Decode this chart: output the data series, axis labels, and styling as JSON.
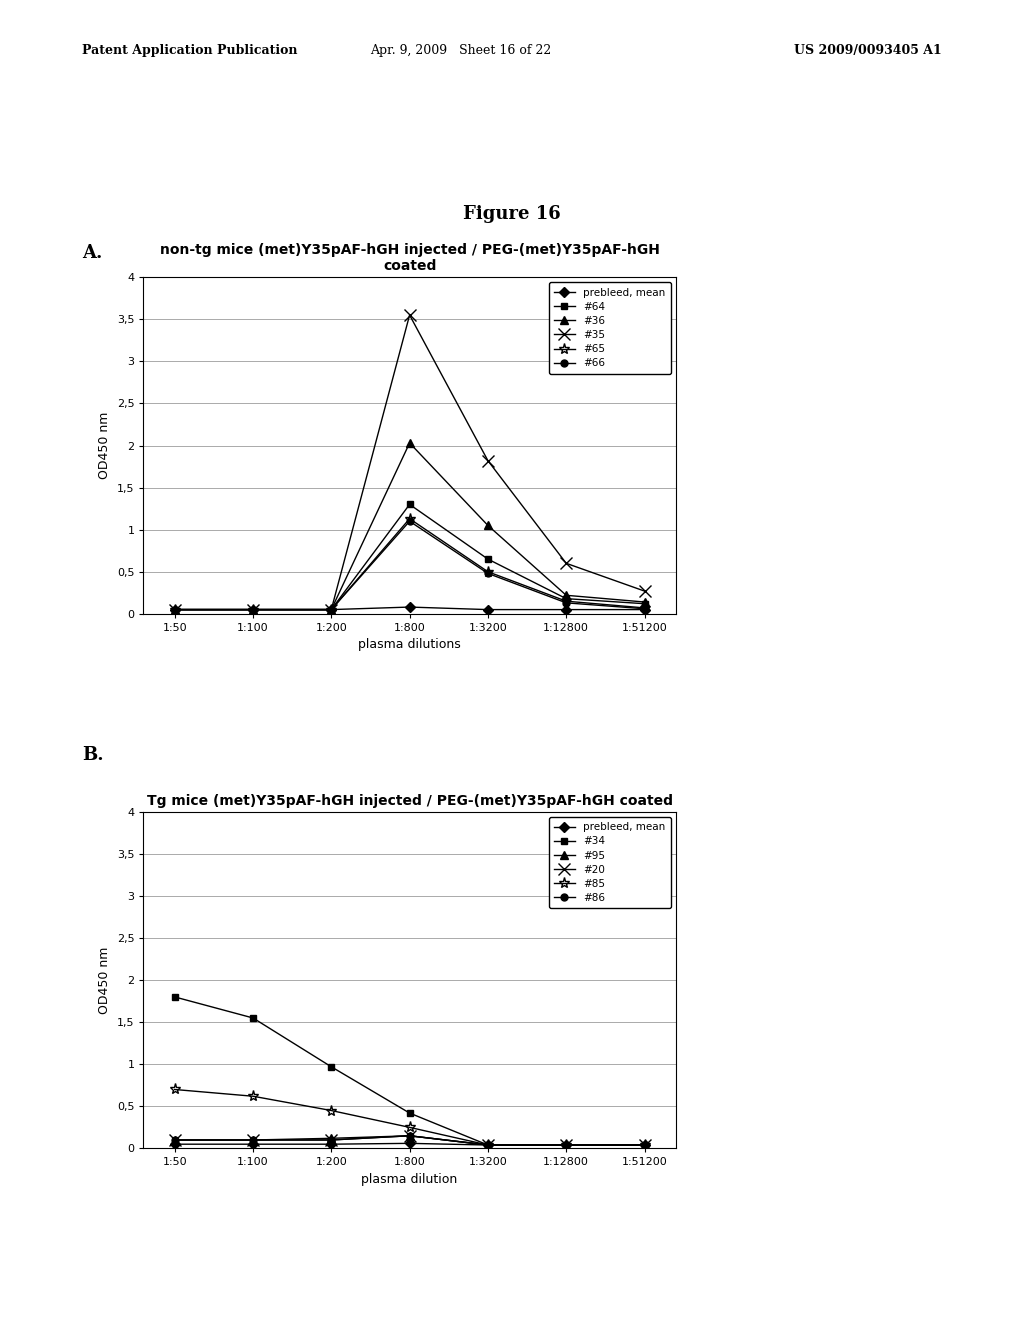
{
  "figure_title": "Figure 16",
  "panel_a_label": "A.",
  "panel_b_label": "B.",
  "chart_a": {
    "title": "non-tg mice (met)Y35pAF-hGH injected / PEG-(met)Y35pAF-hGH\ncoated",
    "xlabel": "plasma dilutions",
    "ylabel": "OD450 nm",
    "ylim": [
      0,
      4
    ],
    "yticks": [
      0,
      0.5,
      1,
      1.5,
      2,
      2.5,
      3,
      3.5,
      4
    ],
    "ytick_labels": [
      "0",
      "0,5",
      "1",
      "1,5",
      "2",
      "2,5",
      "3",
      "3,5",
      "4"
    ],
    "xtick_labels": [
      "1:50",
      "1:100",
      "1:200",
      "1:800",
      "1:3200",
      "1:12800",
      "1:51200"
    ],
    "series": [
      {
        "label": "prebleed, mean",
        "marker": "D",
        "markersize": 5,
        "linestyle": "-",
        "color": "#000000",
        "values": [
          0.05,
          0.05,
          0.05,
          0.08,
          0.05,
          0.05,
          0.05
        ]
      },
      {
        "label": "#64",
        "marker": "s",
        "markersize": 5,
        "linestyle": "-",
        "color": "#000000",
        "values": [
          0.05,
          0.05,
          0.05,
          1.3,
          0.65,
          0.18,
          0.12
        ]
      },
      {
        "label": "#36",
        "marker": "^",
        "markersize": 6,
        "linestyle": "-",
        "color": "#000000",
        "values": [
          0.05,
          0.05,
          0.05,
          2.03,
          1.05,
          0.22,
          0.14
        ]
      },
      {
        "label": "#35",
        "marker": "x",
        "markersize": 8,
        "linestyle": "-",
        "color": "#000000",
        "values": [
          0.05,
          0.05,
          0.05,
          3.55,
          1.82,
          0.6,
          0.27
        ]
      },
      {
        "label": "#65",
        "marker": "*",
        "markersize": 8,
        "linestyle": "-",
        "color": "#000000",
        "values": [
          0.05,
          0.05,
          0.05,
          1.13,
          0.5,
          0.15,
          0.07
        ]
      },
      {
        "label": "#66",
        "marker": "o",
        "markersize": 5,
        "linestyle": "-",
        "color": "#000000",
        "values": [
          0.05,
          0.05,
          0.05,
          1.1,
          0.48,
          0.13,
          0.06
        ]
      }
    ]
  },
  "chart_b": {
    "title": "Tg mice (met)Y35pAF-hGH injected / PEG-(met)Y35pAF-hGH coated",
    "xlabel": "plasma dilution",
    "ylabel": "OD450 nm",
    "ylim": [
      0,
      4
    ],
    "yticks": [
      0,
      0.5,
      1,
      1.5,
      2,
      2.5,
      3,
      3.5,
      4
    ],
    "ytick_labels": [
      "0",
      "0,5",
      "1",
      "1,5",
      "2",
      "2,5",
      "3",
      "3,5",
      "4"
    ],
    "xtick_labels": [
      "1:50",
      "1:100",
      "1:200",
      "1:800",
      "1:3200",
      "1:12800",
      "1:51200"
    ],
    "series": [
      {
        "label": "prebleed, mean",
        "marker": "D",
        "markersize": 5,
        "linestyle": "-",
        "color": "#000000",
        "values": [
          0.05,
          0.05,
          0.05,
          0.06,
          0.04,
          0.04,
          0.04
        ]
      },
      {
        "label": "#34",
        "marker": "s",
        "markersize": 5,
        "linestyle": "-",
        "color": "#000000",
        "values": [
          1.8,
          1.55,
          0.97,
          0.42,
          0.04,
          0.04,
          0.04
        ]
      },
      {
        "label": "#95",
        "marker": "^",
        "markersize": 6,
        "linestyle": "-",
        "color": "#000000",
        "values": [
          0.1,
          0.1,
          0.12,
          0.15,
          0.04,
          0.04,
          0.04
        ]
      },
      {
        "label": "#20",
        "marker": "x",
        "markersize": 8,
        "linestyle": "-",
        "color": "#000000",
        "values": [
          0.1,
          0.1,
          0.1,
          0.15,
          0.04,
          0.04,
          0.04
        ]
      },
      {
        "label": "#85",
        "marker": "*",
        "markersize": 8,
        "linestyle": "-",
        "color": "#000000",
        "values": [
          0.7,
          0.62,
          0.45,
          0.25,
          0.04,
          0.04,
          0.04
        ]
      },
      {
        "label": "#86",
        "marker": "o",
        "markersize": 5,
        "linestyle": "-",
        "color": "#000000",
        "values": [
          0.1,
          0.1,
          0.1,
          0.15,
          0.04,
          0.04,
          0.04
        ]
      }
    ]
  },
  "bg_color": "#ffffff",
  "header_left": "Patent Application Publication",
  "header_mid": "Apr. 9, 2009   Sheet 16 of 22",
  "header_right": "US 2009/0093405 A1"
}
